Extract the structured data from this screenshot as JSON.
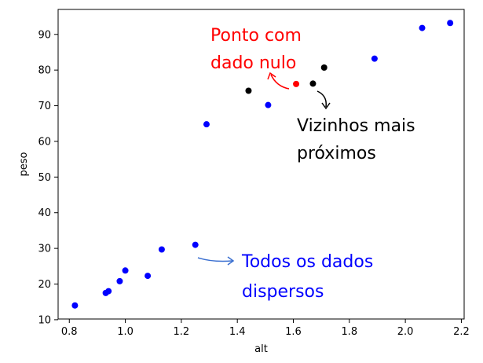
{
  "chart_data": {
    "type": "scatter",
    "xlabel": "alt",
    "ylabel": "peso",
    "xlim": [
      0.76,
      2.21
    ],
    "ylim": [
      10.2,
      97
    ],
    "x_ticks": [
      0.8,
      1.0,
      1.2,
      1.4,
      1.6,
      1.8,
      2.0,
      2.2
    ],
    "y_ticks": [
      10,
      20,
      30,
      40,
      50,
      60,
      70,
      80,
      90
    ],
    "x_tick_labels": [
      "0.8",
      "1.0",
      "1.2",
      "1.4",
      "1.6",
      "1.8",
      "2.0",
      "2.2"
    ],
    "y_tick_labels": [
      "10",
      "20",
      "30",
      "40",
      "50",
      "60",
      "70",
      "80",
      "90"
    ],
    "grid": false,
    "series": [
      {
        "color": "#0000ff",
        "points": [
          {
            "x": 0.82,
            "y": 14
          },
          {
            "x": 0.93,
            "y": 17.5
          },
          {
            "x": 0.94,
            "y": 18
          },
          {
            "x": 0.98,
            "y": 20.8
          },
          {
            "x": 1.0,
            "y": 23.8
          },
          {
            "x": 1.08,
            "y": 22.3
          },
          {
            "x": 1.13,
            "y": 29.7
          },
          {
            "x": 1.25,
            "y": 31
          },
          {
            "x": 1.29,
            "y": 64.8
          },
          {
            "x": 1.51,
            "y": 70.2
          },
          {
            "x": 1.89,
            "y": 83.2
          },
          {
            "x": 2.06,
            "y": 91.8
          },
          {
            "x": 2.16,
            "y": 93.2
          }
        ]
      },
      {
        "color": "#000000",
        "points": [
          {
            "x": 1.44,
            "y": 74.2
          },
          {
            "x": 1.67,
            "y": 76.2
          },
          {
            "x": 1.71,
            "y": 80.7
          }
        ]
      },
      {
        "color": "#ff0000",
        "points": [
          {
            "x": 1.61,
            "y": 76.1
          }
        ]
      }
    ],
    "annotations": [
      {
        "id": "null",
        "lines": [
          "Ponto com",
          "dado nulo"
        ],
        "color": "#ff0000"
      },
      {
        "id": "neighbors",
        "lines": [
          "Vizinhos mais",
          "próximos"
        ],
        "color": "#000000"
      },
      {
        "id": "all",
        "lines": [
          "Todos os dados",
          "dispersos"
        ],
        "color": "#0000ff"
      }
    ]
  }
}
